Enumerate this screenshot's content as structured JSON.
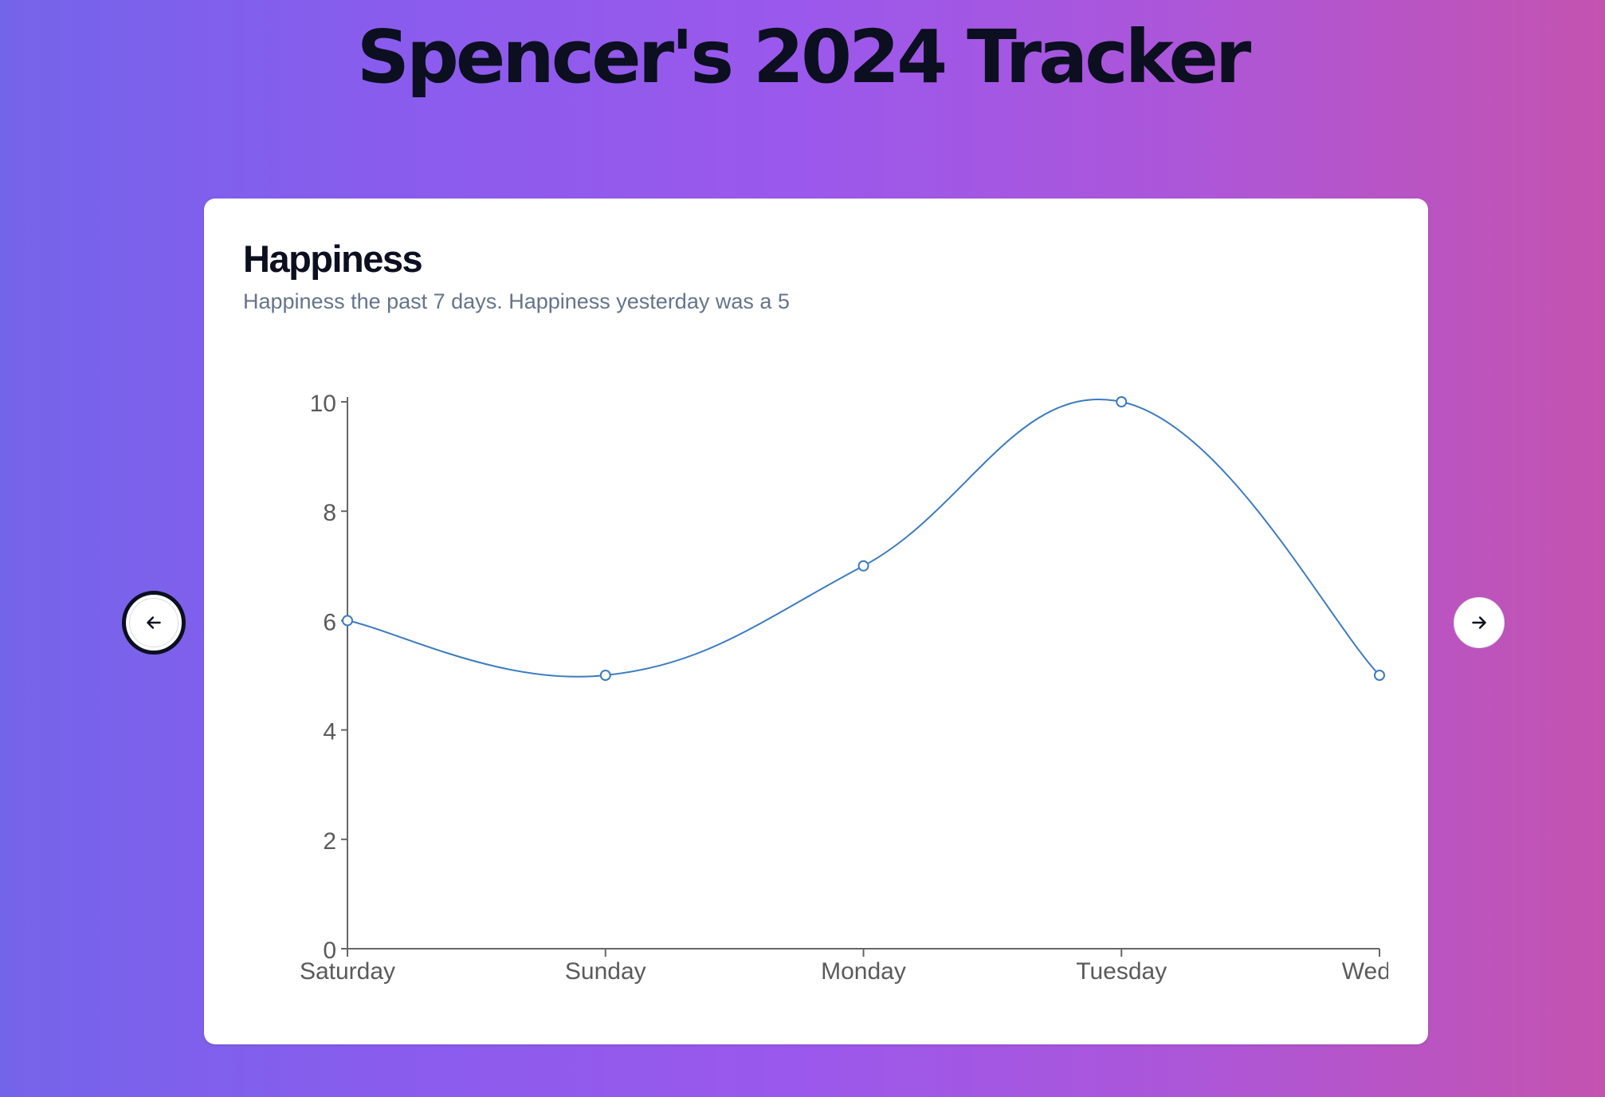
{
  "page": {
    "title": "Spencer's 2024 Tracker"
  },
  "card": {
    "title": "Happiness",
    "description": "Happiness the past 7 days. Happiness yesterday was a 5"
  },
  "nav": {
    "prev_icon": "arrow-left-icon",
    "next_icon": "arrow-right-icon"
  },
  "colors": {
    "line": "#3b7bbf",
    "axis": "#666666",
    "tick_text": "#5a5a5a"
  },
  "chart_data": {
    "type": "line",
    "curve": "smooth",
    "categories": [
      "Saturday",
      "Sunday",
      "Monday",
      "Tuesday",
      "Wednesday"
    ],
    "visible_category_labels": [
      "Saturday",
      "Sunday",
      "Monday",
      "Tuesday",
      "Wedne"
    ],
    "series": [
      {
        "values": [
          6,
          5,
          7,
          10,
          5
        ]
      }
    ],
    "yticks": [
      "0",
      "2",
      "4",
      "6",
      "8",
      "10"
    ],
    "ylim": [
      0,
      10
    ],
    "grid": false,
    "legend": "none"
  }
}
